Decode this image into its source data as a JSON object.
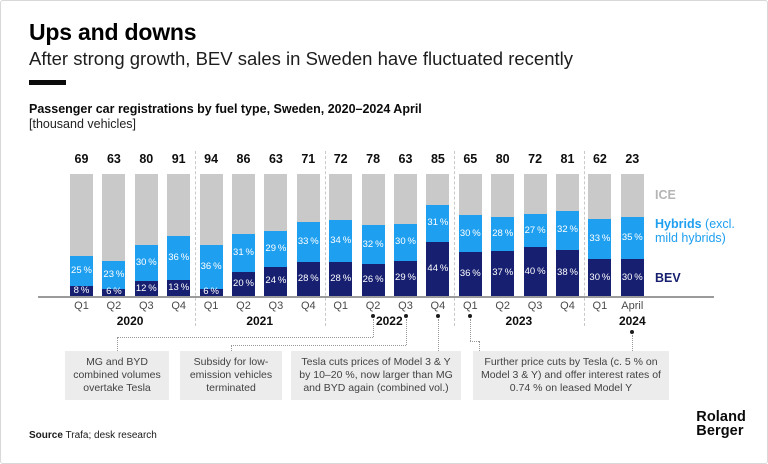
{
  "header": {
    "title": "Ups and downs",
    "subtitle": "After strong growth, BEV sales in Sweden have fluctuated recently"
  },
  "chart_caption": {
    "title": "Passenger car registrations by fuel type, Sweden, 2020–2024 April",
    "unit": "[thousand vehicles]"
  },
  "chart_data": {
    "type": "bar",
    "stacked": "100-percent",
    "title": "Passenger car registrations by fuel type, Sweden, 2020–2024 April",
    "value_unit": "thousand vehicles",
    "note": "Bar totals shown above bars; BEV and Hybrid shares labeled in %; ICE is remainder",
    "colors": {
      "ice": "#C9C9C9",
      "hybrids": "#1E9FEF",
      "bev": "#161F70"
    },
    "legend": [
      {
        "label": "ICE"
      },
      {
        "label": "Hybrids",
        "sub": "(excl. mild hybrids)"
      },
      {
        "label": "BEV"
      }
    ],
    "groups": [
      {
        "year": "2020",
        "bars": [
          {
            "q": "Q1",
            "total": 69,
            "bev_pct": 8,
            "hybrids_pct": 25
          },
          {
            "q": "Q2",
            "total": 63,
            "bev_pct": 6,
            "hybrids_pct": 23
          },
          {
            "q": "Q3",
            "total": 80,
            "bev_pct": 12,
            "hybrids_pct": 30
          },
          {
            "q": "Q4",
            "total": 91,
            "bev_pct": 13,
            "hybrids_pct": 36
          }
        ]
      },
      {
        "year": "2021",
        "bars": [
          {
            "q": "Q1",
            "total": 94,
            "bev_pct": 6,
            "hybrids_pct": 36
          },
          {
            "q": "Q2",
            "total": 86,
            "bev_pct": 20,
            "hybrids_pct": 31
          },
          {
            "q": "Q3",
            "total": 63,
            "bev_pct": 24,
            "hybrids_pct": 29
          },
          {
            "q": "Q4",
            "total": 71,
            "bev_pct": 28,
            "hybrids_pct": 33
          }
        ]
      },
      {
        "year": "2022",
        "bars": [
          {
            "q": "Q1",
            "total": 72,
            "bev_pct": 28,
            "hybrids_pct": 34
          },
          {
            "q": "Q2",
            "total": 78,
            "bev_pct": 26,
            "hybrids_pct": 32
          },
          {
            "q": "Q3",
            "total": 63,
            "bev_pct": 29,
            "hybrids_pct": 30
          },
          {
            "q": "Q4",
            "total": 85,
            "bev_pct": 44,
            "hybrids_pct": 31
          }
        ]
      },
      {
        "year": "2023",
        "bars": [
          {
            "q": "Q1",
            "total": 65,
            "bev_pct": 36,
            "hybrids_pct": 30
          },
          {
            "q": "Q2",
            "total": 80,
            "bev_pct": 37,
            "hybrids_pct": 28
          },
          {
            "q": "Q3",
            "total": 72,
            "bev_pct": 40,
            "hybrids_pct": 27
          },
          {
            "q": "Q4",
            "total": 81,
            "bev_pct": 38,
            "hybrids_pct": 32
          }
        ]
      },
      {
        "year": "2024",
        "bars": [
          {
            "q": "Q1",
            "total": 62,
            "bev_pct": 30,
            "hybrids_pct": 33
          },
          {
            "q": "April",
            "total": 23,
            "bev_pct": 30,
            "hybrids_pct": 35
          }
        ]
      }
    ]
  },
  "annotations": [
    {
      "text": "MG and BYD combined volumes overtake Tesla",
      "target": "2022 Q2"
    },
    {
      "text": "Subsidy for low-emission vehicles terminated",
      "target": "2022 Q3"
    },
    {
      "text": "Tesla cuts prices of Model 3 & Y by 10–20 %, now larger than MG and BYD again (combined vol.)",
      "target": "2022 Q4"
    },
    {
      "text": "Further price cuts by Tesla (c. 5 % on Model 3 & Y) and offer interest rates of 0.74 % on leased Model Y",
      "targets": [
        "2023 Q1",
        "2024 April"
      ]
    }
  ],
  "footer": {
    "source_label": "Source",
    "source_text": "Trafa; desk research",
    "logo_line1": "Roland",
    "logo_line2": "Berger"
  }
}
